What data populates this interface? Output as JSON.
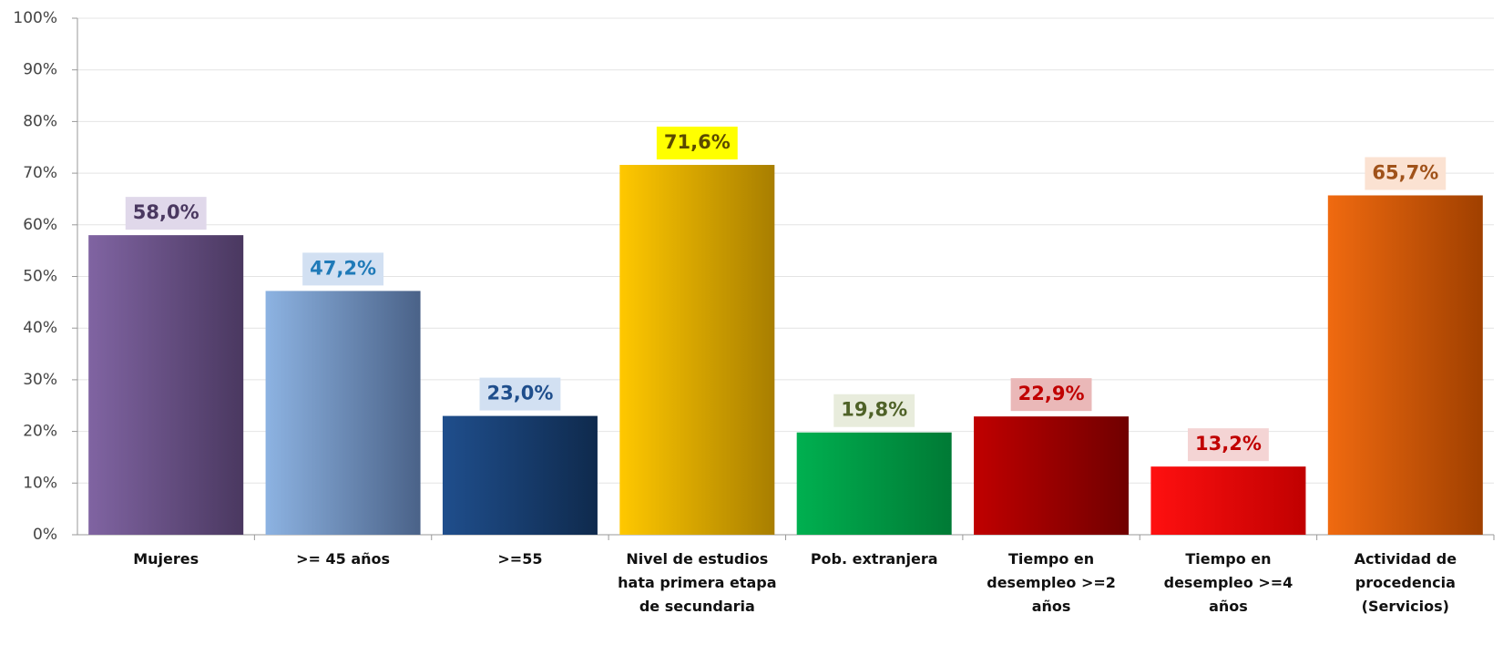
{
  "chart_data": {
    "type": "bar",
    "categories": [
      "Mujeres",
      ">= 45 años",
      ">=55",
      "Nivel de estudios hata primera etapa de secundaria",
      "Pob. extranjera",
      "Tiempo en desempleo >=2 años",
      "Tiempo en desempleo >=4 años",
      "Actividad de procedencia (Servicios)"
    ],
    "values": [
      58.0,
      47.2,
      23.0,
      71.6,
      19.8,
      22.9,
      13.2,
      65.7
    ],
    "value_labels": [
      "58,0%",
      "47,2%",
      "23,0%",
      "71,6%",
      "19,8%",
      "22,9%",
      "13,2%",
      "65,7%"
    ],
    "colors": [
      [
        "#8064a2",
        "#4a3860"
      ],
      [
        "#8db3e2",
        "#4a6288"
      ],
      [
        "#1f4e8c",
        "#0f2a4d"
      ],
      [
        "#ffc800",
        "#a87e00"
      ],
      [
        "#00b050",
        "#007a35"
      ],
      [
        "#c00000",
        "#700000"
      ],
      [
        "#ff1010",
        "#c00000"
      ],
      [
        "#f06a10",
        "#a04000"
      ]
    ],
    "label_colors": [
      "#4a3860",
      "#1f7ab8",
      "#1f4e8c",
      "#5a4a00",
      "#4f6228",
      "#c00000",
      "#c00000",
      "#a0521a"
    ],
    "label_backgrounds": [
      "#e0d8ea",
      "#d2e0f2",
      "#d2e0f2",
      "#ffff00",
      "#e8ecdc",
      "#eab8b8",
      "#f4d4d4",
      "#fbe2d2"
    ],
    "ylim": [
      0,
      100
    ],
    "yticks": [
      {
        "value": 0,
        "label": "0%"
      },
      {
        "value": 10,
        "label": "10%"
      },
      {
        "value": 20,
        "label": "20%"
      },
      {
        "value": 30,
        "label": "30%"
      },
      {
        "value": 40,
        "label": "40%"
      },
      {
        "value": 50,
        "label": "50%"
      },
      {
        "value": 60,
        "label": "60%"
      },
      {
        "value": 70,
        "label": "70%"
      },
      {
        "value": 80,
        "label": "80%"
      },
      {
        "value": 90,
        "label": "90%"
      },
      {
        "value": 100,
        "label": "100%"
      }
    ],
    "grid": true
  }
}
